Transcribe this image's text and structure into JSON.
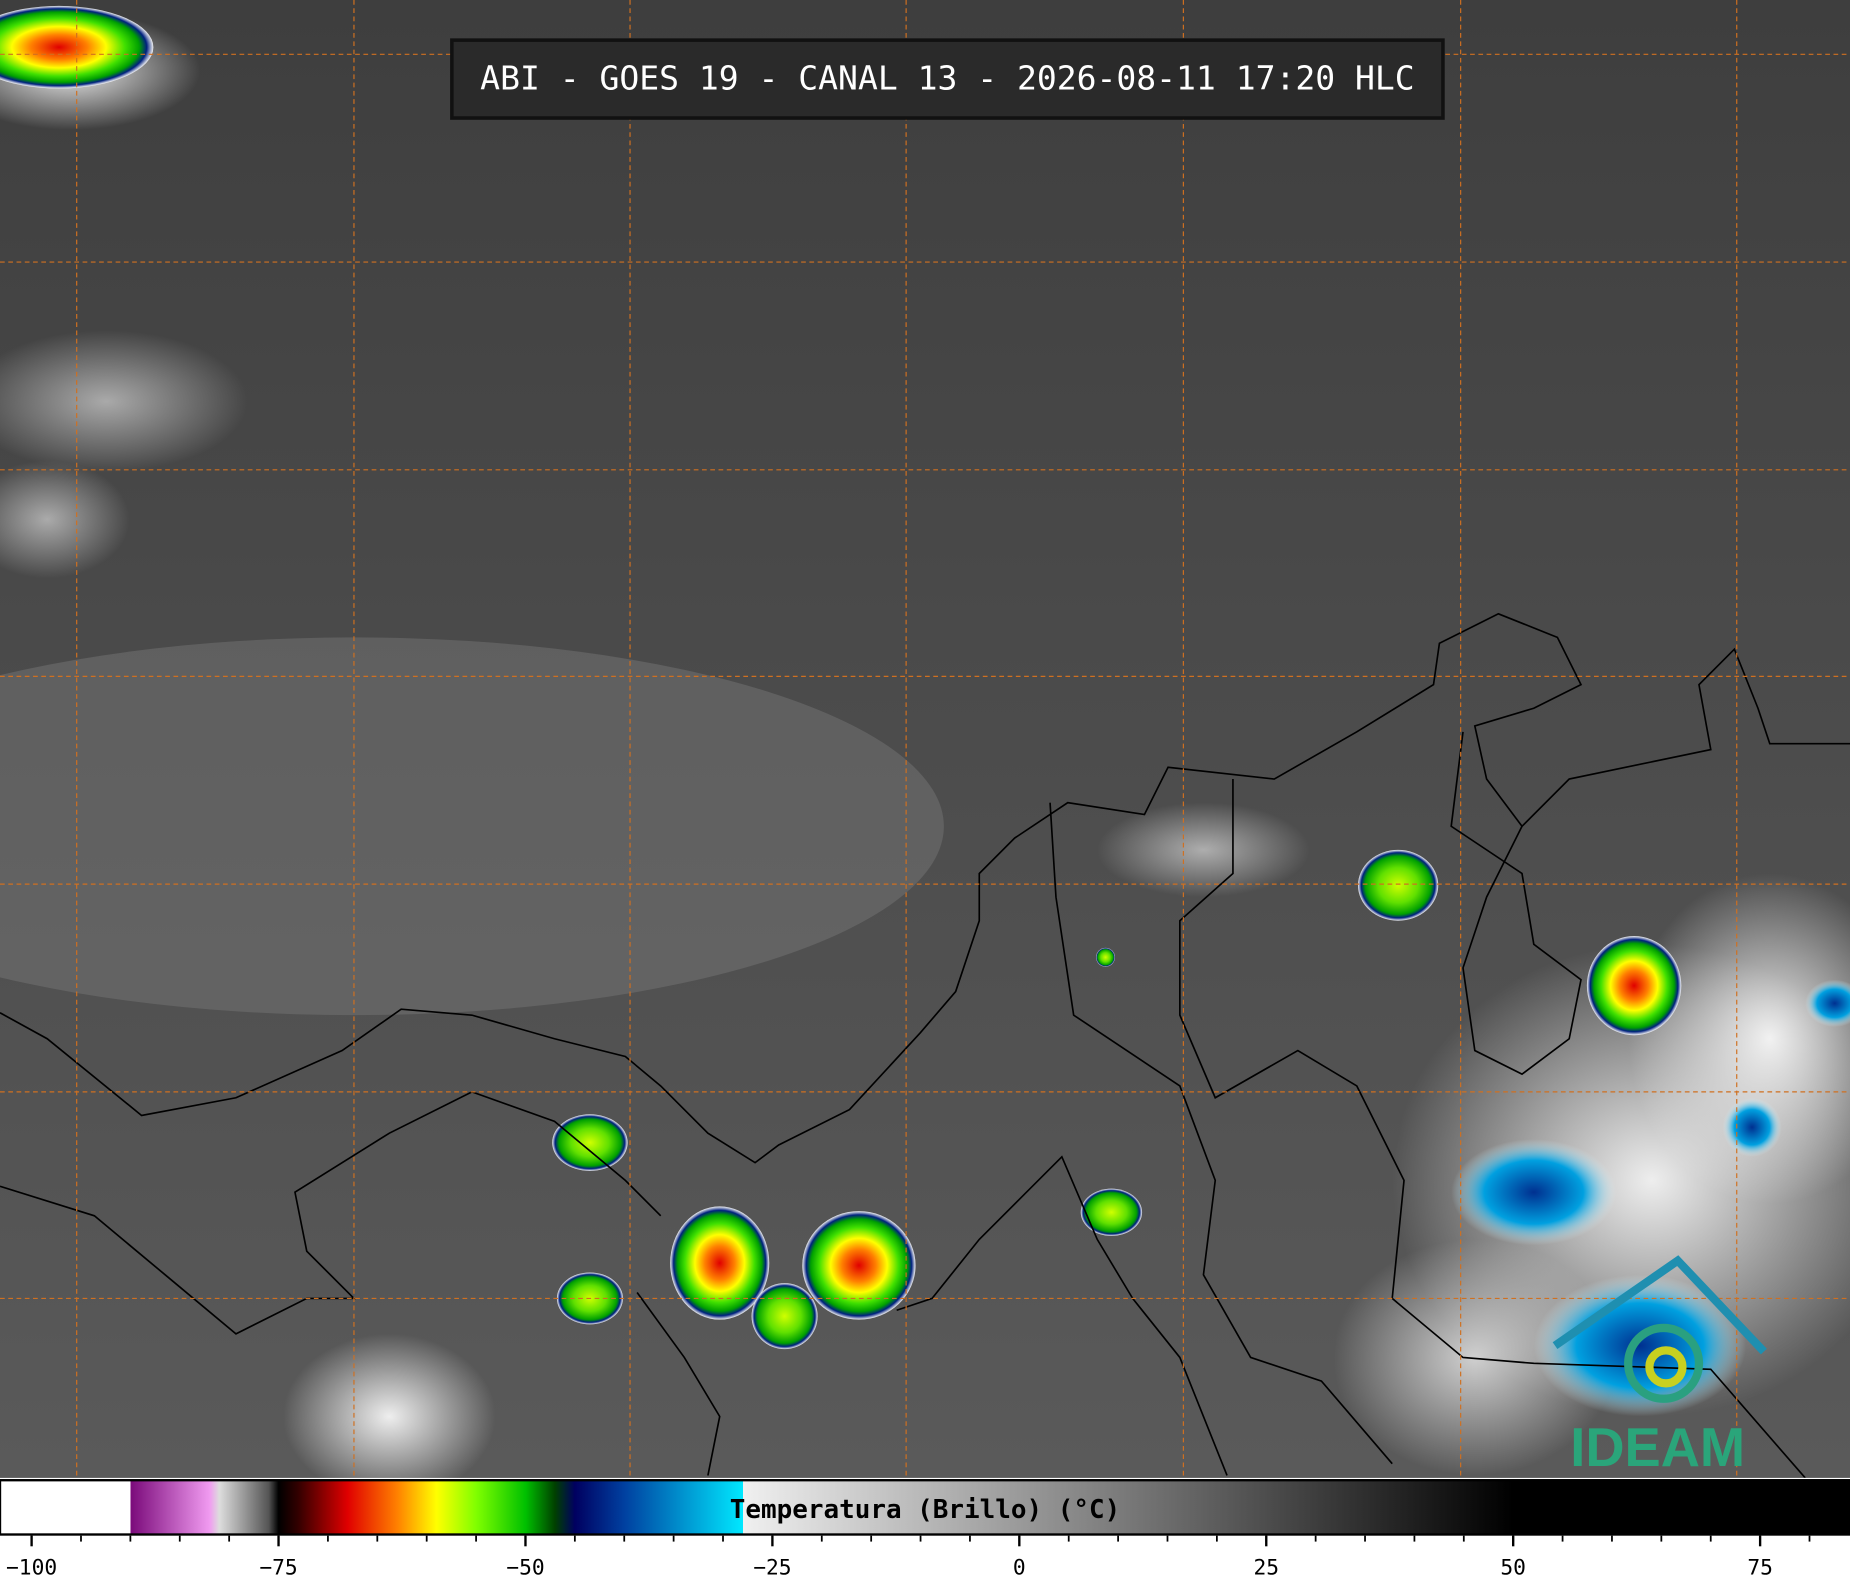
{
  "header": {
    "title": "ABI - GOES 19 - CANAL 13 - 2026-08-11 17:20 HLC"
  },
  "colorbar": {
    "label": "Temperatura (Brillo) (°C)",
    "xlim": [
      -103.2,
      84.1
    ],
    "ticks": [
      {
        "value": -100,
        "label": "−100"
      },
      {
        "value": -75,
        "label": "−75"
      },
      {
        "value": -50,
        "label": "−50"
      },
      {
        "value": -25,
        "label": "−25"
      },
      0,
      25,
      50,
      75
    ],
    "minor_tick_step": 5,
    "stops": [
      {
        "value": -103.2,
        "color": "#ffffff"
      },
      {
        "value": -90,
        "color": "#ffffff"
      },
      {
        "value": -90,
        "color": "#7a0a7a"
      },
      {
        "value": -82,
        "color": "#f09af0"
      },
      {
        "value": -81,
        "color": "#dddddd"
      },
      {
        "value": -76,
        "color": "#555555"
      },
      {
        "value": -75,
        "color": "#000000"
      },
      {
        "value": -73,
        "color": "#330000"
      },
      {
        "value": -68,
        "color": "#e00000"
      },
      {
        "value": -63,
        "color": "#ff8000"
      },
      {
        "value": -59,
        "color": "#ffff00"
      },
      {
        "value": -55,
        "color": "#80ff00"
      },
      {
        "value": -50,
        "color": "#00c000"
      },
      {
        "value": -47,
        "color": "#004000"
      },
      {
        "value": -45,
        "color": "#000060"
      },
      {
        "value": -40,
        "color": "#0040a0"
      },
      {
        "value": -28,
        "color": "#00e8ff"
      },
      {
        "value": -28,
        "color": "#f0f0f0"
      },
      {
        "value": 50,
        "color": "#000000"
      },
      {
        "value": 84.1,
        "color": "#000000"
      }
    ]
  },
  "logo": {
    "text": "IDEAM"
  }
}
